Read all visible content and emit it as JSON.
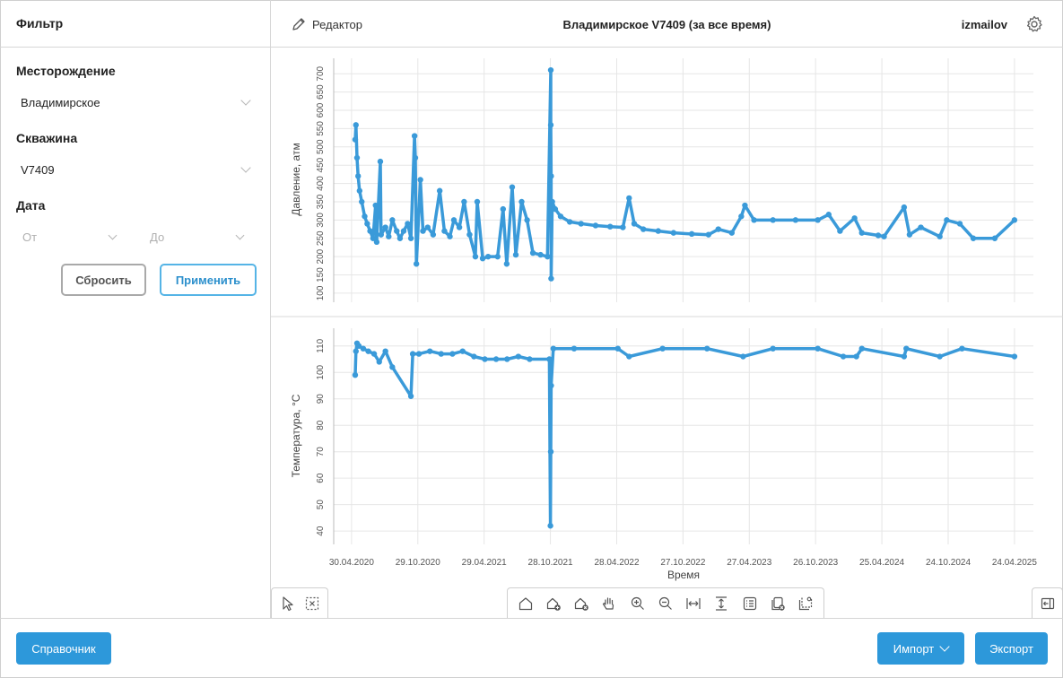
{
  "sidebar": {
    "title": "Фильтр",
    "field_label": "Месторождение",
    "field_value": "Владимирское",
    "well_label": "Скважина",
    "well_value": "V7409",
    "date_label": "Дата",
    "date_from_placeholder": "От",
    "date_to_placeholder": "До",
    "reset_label": "Сбросить",
    "apply_label": "Применить"
  },
  "header": {
    "editor_label": "Редактор",
    "title": "Владимирское V7409 (за все время)",
    "user": "izmailov"
  },
  "footer": {
    "reference_label": "Справочник",
    "import_label": "Импорт",
    "export_label": "Экспорт"
  },
  "colors": {
    "accent": "#2d98da",
    "series": "#3a9ad9",
    "grid": "#e6e6e6"
  },
  "toolbar": {
    "left": [
      "select-arrow-icon",
      "box-select-icon"
    ],
    "middle": [
      "home-icon",
      "add-point-icon",
      "delete-point-icon",
      "pan-hand-icon",
      "zoom-in-icon",
      "zoom-out-icon",
      "fit-horizontal-icon",
      "fit-vertical-icon",
      "list-icon",
      "copy-add-icon",
      "crop-icon"
    ],
    "right": [
      "panel-toggle-icon"
    ]
  },
  "chart_data": [
    {
      "type": "scatter",
      "title": "",
      "xlabel": "",
      "ylabel": "Давление, атм",
      "ylim": [
        90,
        730
      ],
      "yticks": [
        100,
        150,
        200,
        250,
        300,
        350,
        400,
        450,
        500,
        550,
        600,
        650,
        700
      ],
      "grid": true,
      "xlim": [
        "2020-03-12",
        "2025-06-15"
      ],
      "series": [
        {
          "values": [
            [
              "2020-05-10",
              520
            ],
            [
              "2020-05-12",
              560
            ],
            [
              "2020-05-15",
              470
            ],
            [
              "2020-05-18",
              420
            ],
            [
              "2020-05-22",
              380
            ],
            [
              "2020-05-28",
              350
            ],
            [
              "2020-06-05",
              310
            ],
            [
              "2020-06-12",
              290
            ],
            [
              "2020-06-20",
              270
            ],
            [
              "2020-06-28",
              250
            ],
            [
              "2020-07-05",
              340
            ],
            [
              "2020-07-08",
              240
            ],
            [
              "2020-07-18",
              460
            ],
            [
              "2020-07-20",
              260
            ],
            [
              "2020-08-01",
              280
            ],
            [
              "2020-08-10",
              255
            ],
            [
              "2020-08-20",
              300
            ],
            [
              "2020-09-01",
              270
            ],
            [
              "2020-09-10",
              250
            ],
            [
              "2020-09-20",
              270
            ],
            [
              "2020-10-01",
              290
            ],
            [
              "2020-10-10",
              250
            ],
            [
              "2020-10-20",
              530
            ],
            [
              "2020-10-22",
              470
            ],
            [
              "2020-10-25",
              180
            ],
            [
              "2020-11-05",
              410
            ],
            [
              "2020-11-12",
              270
            ],
            [
              "2020-11-25",
              280
            ],
            [
              "2020-12-10",
              260
            ],
            [
              "2020-12-28",
              380
            ],
            [
              "2021-01-10",
              270
            ],
            [
              "2021-01-25",
              255
            ],
            [
              "2021-02-05",
              300
            ],
            [
              "2021-02-20",
              280
            ],
            [
              "2021-03-05",
              350
            ],
            [
              "2021-03-20",
              260
            ],
            [
              "2021-04-05",
              200
            ],
            [
              "2021-04-10",
              350
            ],
            [
              "2021-04-25",
              195
            ],
            [
              "2021-05-10",
              200
            ],
            [
              "2021-06-05",
              200
            ],
            [
              "2021-06-20",
              330
            ],
            [
              "2021-06-30",
              180
            ],
            [
              "2021-07-15",
              390
            ],
            [
              "2021-07-25",
              205
            ],
            [
              "2021-08-10",
              350
            ],
            [
              "2021-08-25",
              300
            ],
            [
              "2021-09-10",
              210
            ],
            [
              "2021-10-01",
              205
            ],
            [
              "2021-10-20",
              200
            ],
            [
              "2021-10-29",
              710
            ],
            [
              "2021-10-29",
              560
            ],
            [
              "2021-10-30",
              420
            ],
            [
              "2021-10-30",
              140
            ],
            [
              "2021-11-02",
              350
            ],
            [
              "2021-11-10",
              330
            ],
            [
              "2021-11-25",
              310
            ],
            [
              "2021-12-20",
              295
            ],
            [
              "2022-01-20",
              290
            ],
            [
              "2022-03-01",
              285
            ],
            [
              "2022-04-10",
              282
            ],
            [
              "2022-05-15",
              280
            ],
            [
              "2022-06-01",
              360
            ],
            [
              "2022-06-15",
              290
            ],
            [
              "2022-07-10",
              275
            ],
            [
              "2022-08-20",
              270
            ],
            [
              "2022-10-01",
              265
            ],
            [
              "2022-11-20",
              262
            ],
            [
              "2023-01-05",
              260
            ],
            [
              "2023-02-01",
              275
            ],
            [
              "2023-03-10",
              265
            ],
            [
              "2023-04-05",
              310
            ],
            [
              "2023-04-15",
              340
            ],
            [
              "2023-05-10",
              300
            ],
            [
              "2023-07-01",
              300
            ],
            [
              "2023-09-01",
              300
            ],
            [
              "2023-11-01",
              300
            ],
            [
              "2023-12-01",
              315
            ],
            [
              "2024-01-01",
              270
            ],
            [
              "2024-02-10",
              305
            ],
            [
              "2024-03-01",
              265
            ],
            [
              "2024-04-15",
              258
            ],
            [
              "2024-05-01",
              255
            ],
            [
              "2024-06-25",
              335
            ],
            [
              "2024-07-10",
              260
            ],
            [
              "2024-08-10",
              280
            ],
            [
              "2024-10-01",
              255
            ],
            [
              "2024-10-20",
              300
            ],
            [
              "2024-11-25",
              290
            ],
            [
              "2025-01-01",
              250
            ],
            [
              "2025-03-01",
              250
            ],
            [
              "2025-04-24",
              300
            ]
          ]
        }
      ]
    },
    {
      "type": "scatter",
      "title": "",
      "xlabel": "Время",
      "ylabel": "Температура, °C",
      "ylim": [
        37,
        115
      ],
      "yticks": [
        40,
        50,
        60,
        70,
        80,
        90,
        100,
        110
      ],
      "grid": true,
      "xlim": [
        "2020-03-12",
        "2025-06-15"
      ],
      "xticks": [
        "30.04.2020",
        "29.10.2020",
        "29.04.2021",
        "28.10.2021",
        "28.04.2022",
        "27.10.2022",
        "27.04.2023",
        "26.10.2023",
        "25.04.2024",
        "24.10.2024",
        "24.04.2025"
      ],
      "series": [
        {
          "values": [
            [
              "2020-05-10",
              99
            ],
            [
              "2020-05-12",
              108
            ],
            [
              "2020-05-15",
              111
            ],
            [
              "2020-05-20",
              110
            ],
            [
              "2020-06-01",
              109
            ],
            [
              "2020-06-15",
              108
            ],
            [
              "2020-07-01",
              107
            ],
            [
              "2020-07-15",
              104
            ],
            [
              "2020-08-01",
              108
            ],
            [
              "2020-08-20",
              102
            ],
            [
              "2020-10-10",
              91
            ],
            [
              "2020-10-15",
              107
            ],
            [
              "2020-11-01",
              107
            ],
            [
              "2020-12-01",
              108
            ],
            [
              "2021-01-01",
              107
            ],
            [
              "2021-02-01",
              107
            ],
            [
              "2021-03-01",
              108
            ],
            [
              "2021-04-01",
              106
            ],
            [
              "2021-05-01",
              105
            ],
            [
              "2021-06-01",
              105
            ],
            [
              "2021-07-01",
              105
            ],
            [
              "2021-08-01",
              106
            ],
            [
              "2021-09-01",
              105
            ],
            [
              "2021-10-25",
              105
            ],
            [
              "2021-10-28",
              42
            ],
            [
              "2021-10-29",
              70
            ],
            [
              "2021-10-30",
              95
            ],
            [
              "2021-11-05",
              109
            ],
            [
              "2022-01-01",
              109
            ],
            [
              "2022-05-01",
              109
            ],
            [
              "2022-06-01",
              106
            ],
            [
              "2022-09-01",
              109
            ],
            [
              "2023-01-01",
              109
            ],
            [
              "2023-04-10",
              106
            ],
            [
              "2023-07-01",
              109
            ],
            [
              "2023-11-01",
              109
            ],
            [
              "2024-01-10",
              106
            ],
            [
              "2024-02-15",
              106
            ],
            [
              "2024-03-01",
              109
            ],
            [
              "2024-06-25",
              106
            ],
            [
              "2024-07-01",
              109
            ],
            [
              "2024-10-01",
              106
            ],
            [
              "2024-12-01",
              109
            ],
            [
              "2025-04-24",
              106
            ]
          ]
        }
      ]
    }
  ]
}
